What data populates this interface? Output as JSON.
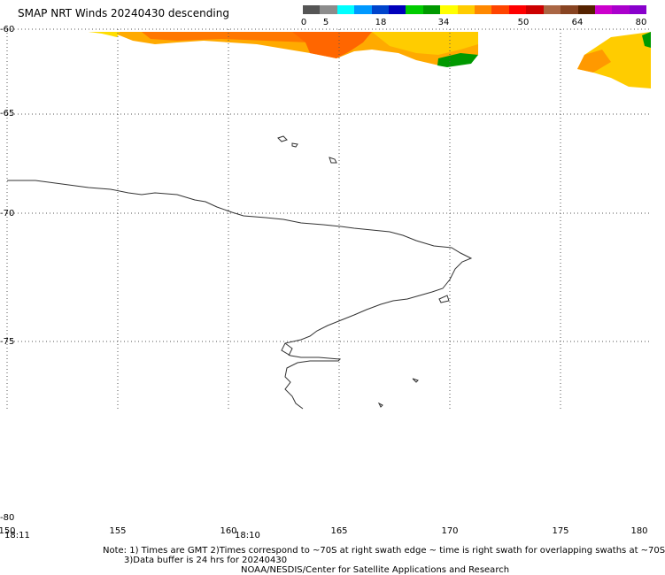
{
  "title": "SMAP NRT Winds  20240430  descending",
  "scale": {
    "labels": [
      "0",
      "5",
      "18",
      "34",
      "50",
      "64",
      "80"
    ],
    "colors": [
      "#555555",
      "#8c8c8c",
      "#00ffff",
      "#0099ff",
      "#0044cc",
      "#0000bb",
      "#00cc00",
      "#009900",
      "#ffff00",
      "#ffcc00",
      "#ff8800",
      "#ff4400",
      "#ff0000",
      "#cc0000",
      "#aa6644",
      "#884422",
      "#552200",
      "#cc00cc",
      "#aa00cc",
      "#8800cc"
    ]
  },
  "lat_labels": [
    "-60",
    "-65",
    "-70",
    "-75",
    "-80"
  ],
  "lon_labels": [
    "150",
    "155",
    "160",
    "165",
    "170",
    "175",
    "180"
  ],
  "times": [
    "18:11",
    "18:10"
  ],
  "notes": {
    "line1": "Note: 1) Times are GMT 2)Times correspond to ~70S at right swath edge ~ time is right swath for overlapping swaths at ~70S",
    "line2": "3)Data buffer is 24 hrs for 20240430",
    "line3": "NOAA/NESDIS/Center for Satellite Applications and Research"
  },
  "colors": {
    "gridline": "#555555",
    "coastline": "#333333",
    "wind_orange": "#ff7700",
    "wind_gold": "#ffaa00",
    "wind_yellow": "#ffdd00",
    "wind_green": "#009900"
  }
}
